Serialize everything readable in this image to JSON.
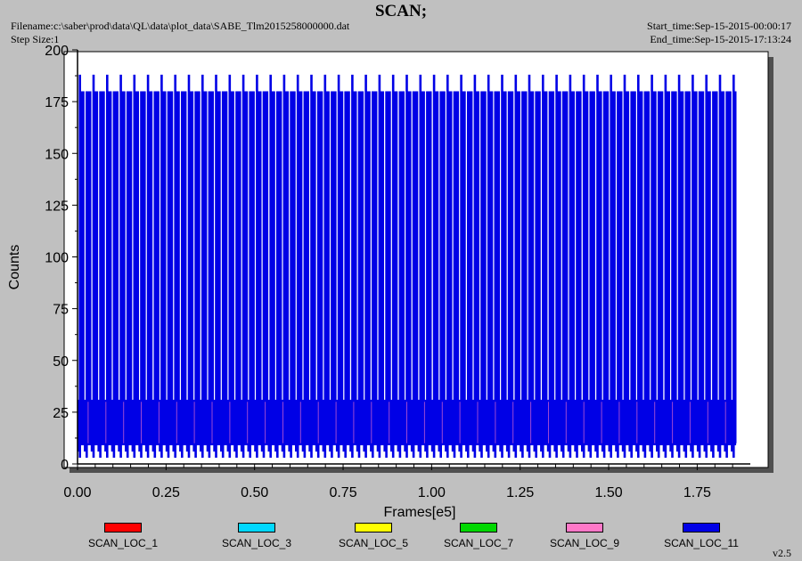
{
  "header": {
    "title": "SCAN;",
    "filename": "Filename:c:\\saber\\prod\\data\\QL\\data\\plot_data\\SABE_Tlm2015258000000.dat",
    "step_size": "Step Size:1",
    "start_time": "Start_time:Sep-15-2015-00:00:17",
    "end_time": "End_time:Sep-15-2015-17:13:24"
  },
  "footer": {
    "version": "v2.5"
  },
  "chart_data": {
    "type": "line",
    "xlabel": "Frames[e5]",
    "ylabel": "Counts",
    "xlim": [
      0,
      1.9
    ],
    "ylim": [
      0,
      200
    ],
    "x_ticks": [
      "0.00",
      "0.25",
      "0.50",
      "0.75",
      "1.00",
      "1.25",
      "1.50",
      "1.75"
    ],
    "y_ticks": [
      "0",
      "25",
      "50",
      "75",
      "100",
      "125",
      "150",
      "175",
      "200"
    ],
    "grid": false,
    "legend_position": "bottom",
    "scan_period_e5": 0.01923,
    "x_end_e5": 1.86,
    "series": [
      {
        "name": "SCAN_LOC_1",
        "color": "#ff0000",
        "low": 12,
        "high": 28
      },
      {
        "name": "SCAN_LOC_3",
        "color": "#00d8ff",
        "low": 12,
        "high": 28
      },
      {
        "name": "SCAN_LOC_5",
        "color": "#ffff00",
        "low": 12,
        "high": 28
      },
      {
        "name": "SCAN_LOC_7",
        "color": "#00d800",
        "low": 12,
        "high": 28
      },
      {
        "name": "SCAN_LOC_9",
        "color": "#ff78c8",
        "low": 10,
        "high": 30
      },
      {
        "name": "SCAN_LOC_11",
        "color": "#0000e6",
        "low": 3,
        "high": 180,
        "peak": 188,
        "band_low": 9,
        "band_high": 31
      }
    ]
  }
}
